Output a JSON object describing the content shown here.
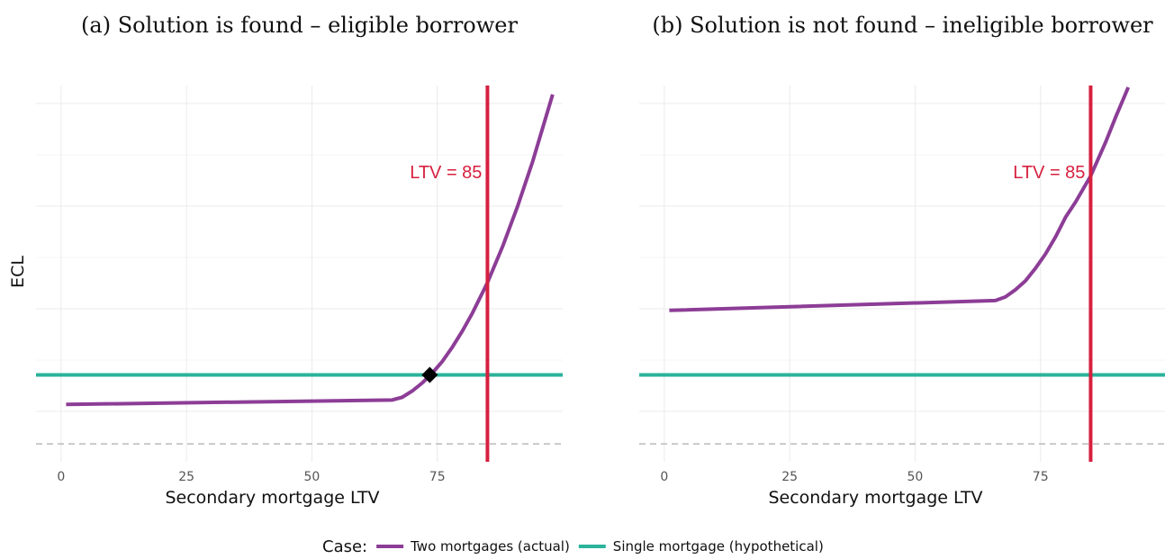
{
  "chart_data": [
    {
      "type": "line",
      "title": "(a) Solution is found – eligible borrower",
      "xlabel": "Secondary mortgage LTV",
      "ylabel": "ECL",
      "xlim": [
        -5,
        100
      ],
      "ylim": [
        -2,
        40
      ],
      "xticks": [
        0,
        25,
        50,
        75
      ],
      "grid": true,
      "hline": 0,
      "series": [
        {
          "name": "Two mortgages (actual)",
          "color": "#8c3d96",
          "x": [
            1,
            66,
            68,
            70,
            72,
            74,
            76,
            78,
            80,
            82,
            85,
            88,
            91,
            94,
            98
          ],
          "values": [
            4.4,
            4.9,
            5.2,
            5.9,
            6.8,
            7.9,
            9.2,
            10.8,
            12.6,
            14.6,
            18.0,
            22.0,
            26.5,
            31.5,
            39.0
          ]
        },
        {
          "name": "Single mortgage (hypothetical)",
          "color": "#2bb39b",
          "x": [
            -5,
            100
          ],
          "values": [
            7.7,
            7.7
          ]
        }
      ],
      "vline": {
        "x": 85,
        "color": "#d6203f",
        "label": "LTV = 85"
      },
      "points": [
        {
          "x": 73.5,
          "y": 7.7,
          "color": "#000000"
        }
      ]
    },
    {
      "type": "line",
      "title": "(b) Solution is not found – ineligible borrower",
      "xlabel": "Secondary mortgage LTV",
      "xlim": [
        -5,
        100
      ],
      "ylim": [
        -2,
        40
      ],
      "xticks": [
        0,
        25,
        50,
        75
      ],
      "grid": true,
      "hline": 0,
      "series": [
        {
          "name": "Two mortgages (actual)",
          "color": "#8c3d96",
          "x": [
            1,
            66,
            68,
            70,
            72,
            74,
            76,
            78,
            80,
            82,
            85,
            88,
            90,
            92.5
          ],
          "values": [
            14.9,
            16.0,
            16.4,
            17.2,
            18.2,
            19.6,
            21.2,
            23.1,
            25.3,
            27.0,
            29.9,
            33.7,
            36.5,
            39.8
          ]
        },
        {
          "name": "Single mortgage (hypothetical)",
          "color": "#2bb39b",
          "x": [
            -5,
            100
          ],
          "values": [
            7.7,
            7.7
          ]
        }
      ],
      "vline": {
        "x": 85,
        "color": "#d6203f",
        "label": "LTV = 85"
      }
    }
  ],
  "legend": {
    "title": "Case:"
  }
}
